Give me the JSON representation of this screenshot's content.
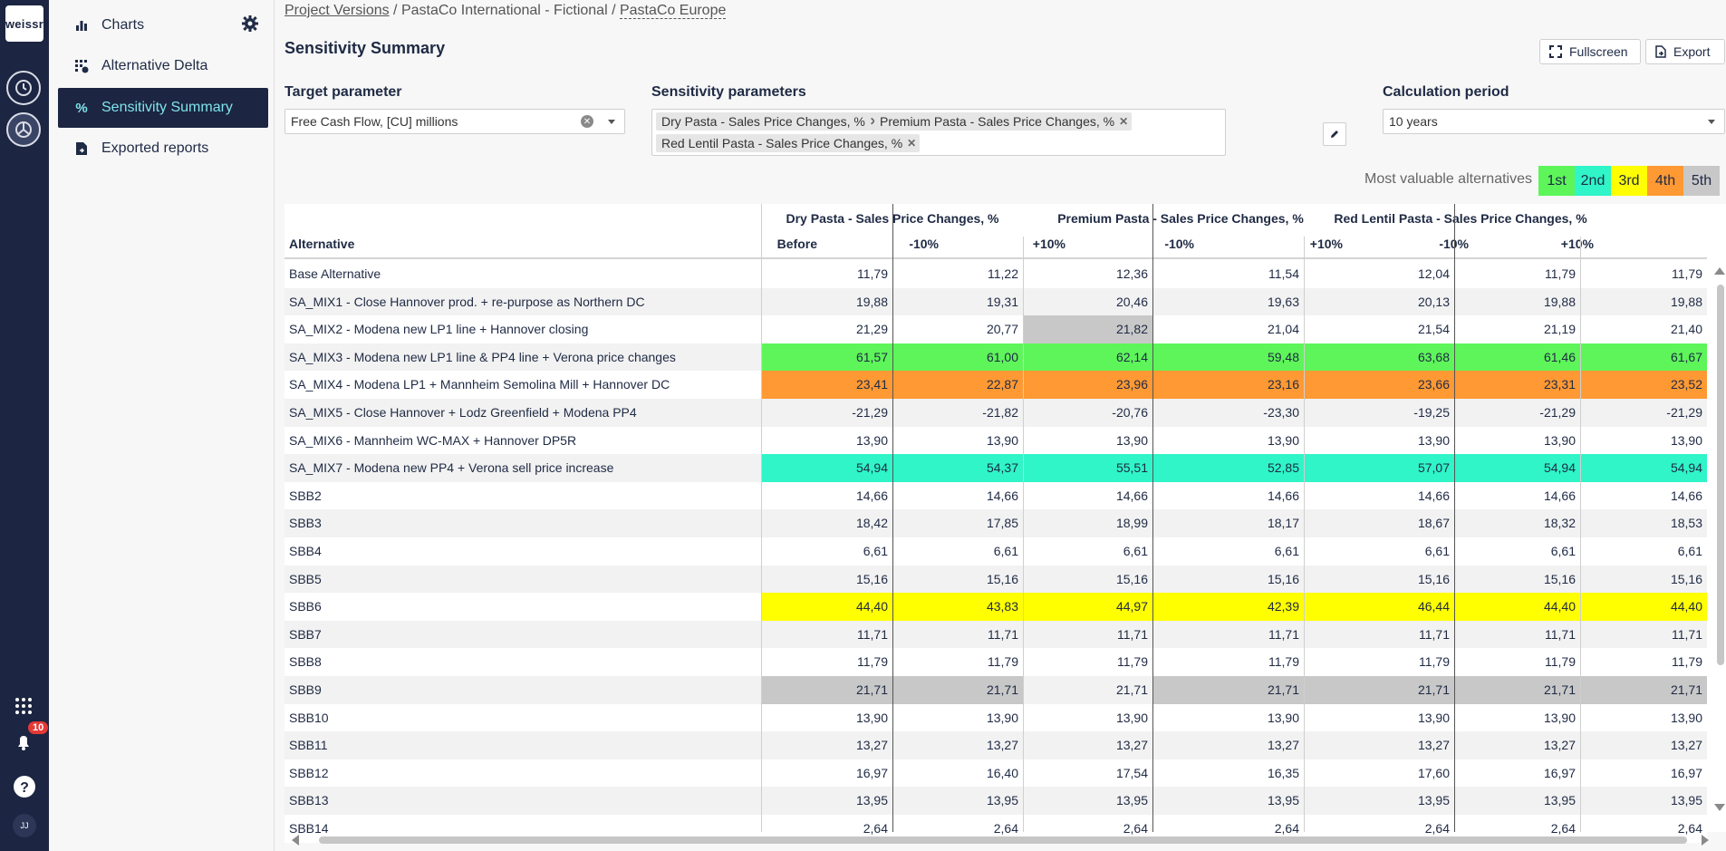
{
  "app": {
    "logo_text": "weissr",
    "notification_count": "10",
    "user_initials": "JJ"
  },
  "nav": {
    "items": [
      {
        "label": "Charts",
        "icon": "bar-chart-icon"
      },
      {
        "label": "Alternative Delta",
        "icon": "grid-delta-icon"
      },
      {
        "label": "Sensitivity Summary",
        "icon": "percent-icon",
        "active": true
      },
      {
        "label": "Exported reports",
        "icon": "file-export-icon"
      }
    ]
  },
  "breadcrumb": {
    "part1": "Project Versions",
    "sep1": " / ",
    "part2": "PastaCo International - Fictional",
    "sep2": " / ",
    "part3": "PastaCo Europe"
  },
  "page": {
    "title": "Sensitivity Summary"
  },
  "toolbar": {
    "fullscreen_label": "Fullscreen",
    "export_label": "Export"
  },
  "filters": {
    "target_label": "Target parameter",
    "target_value": "Free Cash Flow, [CU] millions",
    "sens_label": "Sensitivity parameters",
    "sens_chips": [
      "Dry Pasta - Sales Price Changes, %",
      "Premium Pasta - Sales Price Changes, %",
      "Red Lentil Pasta - Sales Price Changes, %"
    ],
    "period_label": "Calculation period",
    "period_value": "10 years"
  },
  "legend": {
    "label": "Most valuable alternatives",
    "ranks": [
      {
        "label": "1st",
        "color": "#5ef55a"
      },
      {
        "label": "2nd",
        "color": "#2ff5c8"
      },
      {
        "label": "3rd",
        "color": "#ffff00"
      },
      {
        "label": "4th",
        "color": "#ff9933"
      },
      {
        "label": "5th",
        "color": "#c8c8c8"
      }
    ]
  },
  "table": {
    "alt_header": "Alternative",
    "before_header": "Before",
    "groups": [
      "Dry Pasta - Sales Price Changes, %",
      "Premium Pasta - Sales Price Changes, %",
      "Red Lentil Pasta - Sales Price Changes, %"
    ],
    "sub_headers": [
      "-10%",
      "+10%"
    ],
    "rows": [
      {
        "name": "Base Alternative",
        "values": [
          "11,79",
          "11,22",
          "12,36",
          "11,54",
          "12,04",
          "11,79",
          "11,79"
        ]
      },
      {
        "name": "SA_MIX1 - Close Hannover prod. + re-purpose as Northern DC",
        "values": [
          "19,88",
          "19,31",
          "20,46",
          "19,63",
          "20,13",
          "19,88",
          "19,88"
        ]
      },
      {
        "name": "SA_MIX2 - Modena new LP1 line + Hannover closing",
        "values": [
          "21,29",
          "20,77",
          "21,82",
          "21,04",
          "21,54",
          "21,19",
          "21,40"
        ],
        "ranks": [
          0,
          0,
          5,
          0,
          0,
          0,
          0
        ]
      },
      {
        "name": "SA_MIX3 - Modena new LP1 line & PP4 line + Verona price changes",
        "values": [
          "61,57",
          "61,00",
          "62,14",
          "59,48",
          "63,68",
          "61,46",
          "61,67"
        ],
        "ranks": [
          1,
          1,
          1,
          1,
          1,
          1,
          1
        ]
      },
      {
        "name": "SA_MIX4 - Modena LP1 + Mannheim Semolina Mill + Hannover DC",
        "values": [
          "23,41",
          "22,87",
          "23,96",
          "23,16",
          "23,66",
          "23,31",
          "23,52"
        ],
        "ranks": [
          4,
          4,
          4,
          4,
          4,
          4,
          4
        ]
      },
      {
        "name": "SA_MIX5 - Close Hannover + Lodz Greenfield + Modena PP4",
        "values": [
          "-21,29",
          "-21,82",
          "-20,76",
          "-23,30",
          "-19,25",
          "-21,29",
          "-21,29"
        ]
      },
      {
        "name": "SA_MIX6 - Mannheim WC-MAX + Hannover DP5R",
        "values": [
          "13,90",
          "13,90",
          "13,90",
          "13,90",
          "13,90",
          "13,90",
          "13,90"
        ]
      },
      {
        "name": "SA_MIX7 - Modena new PP4 + Verona sell price increase",
        "values": [
          "54,94",
          "54,37",
          "55,51",
          "52,85",
          "57,07",
          "54,94",
          "54,94"
        ],
        "ranks": [
          2,
          2,
          2,
          2,
          2,
          2,
          2
        ]
      },
      {
        "name": "SBB2",
        "values": [
          "14,66",
          "14,66",
          "14,66",
          "14,66",
          "14,66",
          "14,66",
          "14,66"
        ]
      },
      {
        "name": "SBB3",
        "values": [
          "18,42",
          "17,85",
          "18,99",
          "18,17",
          "18,67",
          "18,32",
          "18,53"
        ]
      },
      {
        "name": "SBB4",
        "values": [
          "6,61",
          "6,61",
          "6,61",
          "6,61",
          "6,61",
          "6,61",
          "6,61"
        ]
      },
      {
        "name": "SBB5",
        "values": [
          "15,16",
          "15,16",
          "15,16",
          "15,16",
          "15,16",
          "15,16",
          "15,16"
        ]
      },
      {
        "name": "SBB6",
        "values": [
          "44,40",
          "43,83",
          "44,97",
          "42,39",
          "46,44",
          "44,40",
          "44,40"
        ],
        "ranks": [
          3,
          3,
          3,
          3,
          3,
          3,
          3
        ]
      },
      {
        "name": "SBB7",
        "values": [
          "11,71",
          "11,71",
          "11,71",
          "11,71",
          "11,71",
          "11,71",
          "11,71"
        ]
      },
      {
        "name": "SBB8",
        "values": [
          "11,79",
          "11,79",
          "11,79",
          "11,79",
          "11,79",
          "11,79",
          "11,79"
        ]
      },
      {
        "name": "SBB9",
        "values": [
          "21,71",
          "21,71",
          "21,71",
          "21,71",
          "21,71",
          "21,71",
          "21,71"
        ],
        "ranks": [
          5,
          5,
          0,
          5,
          5,
          5,
          5
        ]
      },
      {
        "name": "SBB10",
        "values": [
          "13,90",
          "13,90",
          "13,90",
          "13,90",
          "13,90",
          "13,90",
          "13,90"
        ]
      },
      {
        "name": "SBB11",
        "values": [
          "13,27",
          "13,27",
          "13,27",
          "13,27",
          "13,27",
          "13,27",
          "13,27"
        ]
      },
      {
        "name": "SBB12",
        "values": [
          "16,97",
          "16,40",
          "17,54",
          "16,35",
          "17,60",
          "16,97",
          "16,97"
        ]
      },
      {
        "name": "SBB13",
        "values": [
          "13,95",
          "13,95",
          "13,95",
          "13,95",
          "13,95",
          "13,95",
          "13,95"
        ]
      },
      {
        "name": "SBB14",
        "values": [
          "2,64",
          "2,64",
          "2,64",
          "2,64",
          "2,64",
          "2,64",
          "2,64"
        ]
      }
    ]
  }
}
